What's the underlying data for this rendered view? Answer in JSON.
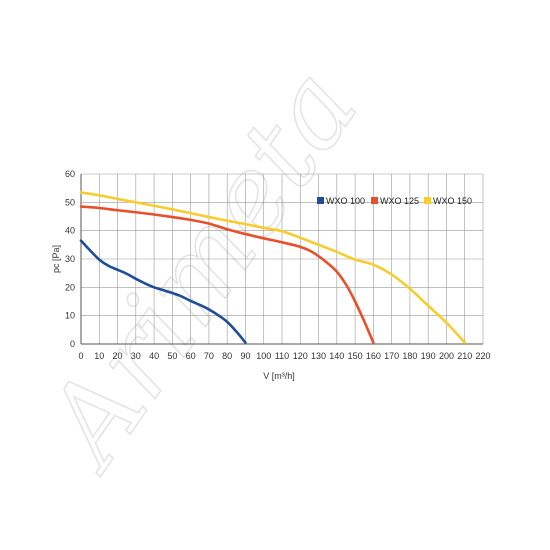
{
  "chart_data": {
    "type": "line",
    "title": "",
    "xlabel": "V [m³/h]",
    "ylabel": "pc [Pa]",
    "xlim": [
      0,
      220
    ],
    "ylim": [
      0,
      60
    ],
    "x_ticks": [
      0,
      10,
      20,
      30,
      40,
      50,
      60,
      70,
      80,
      90,
      100,
      110,
      120,
      130,
      140,
      150,
      160,
      170,
      180,
      190,
      200,
      210,
      220
    ],
    "y_ticks": [
      0,
      10,
      20,
      30,
      40,
      50,
      60
    ],
    "grid": true,
    "legend_position": "top-right",
    "series": [
      {
        "name": "WXO 100",
        "color": "#1f4e96",
        "x": [
          0,
          5,
          10,
          15,
          20,
          25,
          30,
          35,
          40,
          45,
          50,
          55,
          60,
          65,
          70,
          75,
          80,
          85,
          90
        ],
        "y": [
          36.5,
          33,
          29.8,
          27.6,
          26.2,
          24.8,
          23.0,
          21.4,
          20.0,
          19.0,
          18.0,
          16.8,
          15.2,
          13.8,
          12.2,
          10.2,
          7.8,
          4.4,
          0.5
        ]
      },
      {
        "name": "WXO 125",
        "color": "#e8502a",
        "x": [
          0,
          10,
          20,
          30,
          40,
          50,
          60,
          70,
          80,
          90,
          100,
          110,
          120,
          125,
          130,
          135,
          140,
          145,
          150,
          155,
          160
        ],
        "y": [
          48.5,
          48,
          47.2,
          46.5,
          45.7,
          44.8,
          43.8,
          42.5,
          40.5,
          38.8,
          37.3,
          35.9,
          34.3,
          33,
          31,
          28.5,
          25.5,
          21,
          15,
          8,
          0.5
        ]
      },
      {
        "name": "WXO 150",
        "color": "#f7cd2e",
        "x": [
          0,
          10,
          20,
          30,
          40,
          50,
          60,
          70,
          80,
          90,
          100,
          110,
          120,
          130,
          140,
          150,
          160,
          170,
          180,
          190,
          200,
          210
        ],
        "y": [
          53.5,
          52.5,
          51.2,
          50,
          48.8,
          47.5,
          46.2,
          44.8,
          43.5,
          42.3,
          41.0,
          39.8,
          37.5,
          35,
          32.5,
          29.8,
          28.0,
          24.5,
          19.5,
          13.5,
          7.5,
          0.5
        ]
      }
    ]
  },
  "watermark": {
    "text": "Arimeta",
    "color": "#e3e3e3"
  }
}
